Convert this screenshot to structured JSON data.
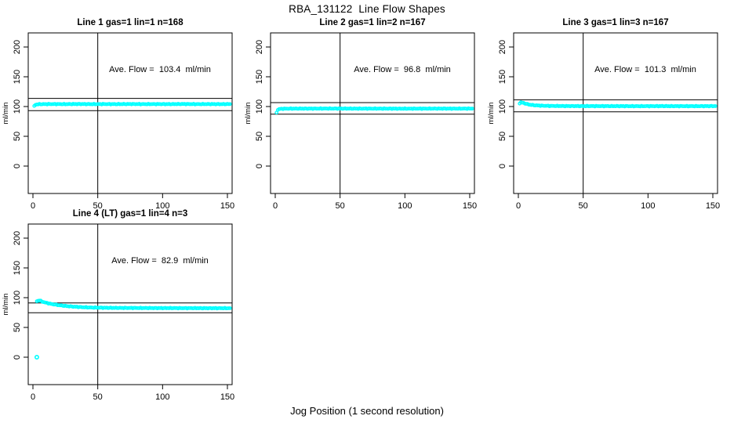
{
  "title": "RBA_131122  Line Flow Shapes",
  "chart_data": {
    "type": "scatter",
    "title": "RBA_131122  Line Flow Shapes",
    "xlabel": "Jog Position (1 second resolution)",
    "ylabel": "ml/min",
    "x_ticks": [
      0,
      50,
      100,
      150
    ],
    "y_ticks": [
      0,
      50,
      100,
      150,
      200
    ],
    "xlim": [
      -4,
      154
    ],
    "ylim": [
      -46,
      224
    ],
    "grid": false,
    "legend": false,
    "marker": "open-circle",
    "point_color": "#00FFFF",
    "axis_color": "#000000",
    "background": "#FFFFFF",
    "vline_x": 50,
    "layout": "2 rows x 3 cols, panels 1-3 on top row, panel 4 bottom-left",
    "subplots": [
      {
        "title": "Line 1 gas=1 lin=1 n=168",
        "n": 168,
        "ave_flow": 103.4,
        "annotation": "Ave. Flow =  103.4  ml/min",
        "ref_lines": [
          113.7,
          93.1
        ],
        "keypoints": [
          [
            1,
            100.5
          ],
          [
            2,
            103.2
          ],
          [
            4,
            103.8
          ],
          [
            8,
            104.0
          ],
          [
            15,
            104.1
          ],
          [
            25,
            104.0
          ],
          [
            35,
            104.2
          ],
          [
            45,
            104.0
          ],
          [
            55,
            104.1
          ],
          [
            65,
            104.0
          ],
          [
            75,
            104.2
          ],
          [
            85,
            104.0
          ],
          [
            95,
            104.1
          ],
          [
            105,
            104.0
          ],
          [
            115,
            104.2
          ],
          [
            125,
            104.0
          ],
          [
            135,
            104.1
          ],
          [
            145,
            104.0
          ],
          [
            152,
            104.1
          ]
        ],
        "outliers": []
      },
      {
        "title": "Line 2 gas=1 lin=2 n=167",
        "n": 167,
        "ave_flow": 96.8,
        "annotation": "Ave. Flow =  96.8  ml/min",
        "ref_lines": [
          106.5,
          87.1
        ],
        "keypoints": [
          [
            1,
            90.0
          ],
          [
            2,
            94.5
          ],
          [
            3,
            95.8
          ],
          [
            6,
            96.3
          ],
          [
            12,
            96.5
          ],
          [
            25,
            96.5
          ],
          [
            40,
            96.6
          ],
          [
            60,
            96.5
          ],
          [
            80,
            96.5
          ],
          [
            100,
            96.4
          ],
          [
            120,
            96.5
          ],
          [
            140,
            96.5
          ],
          [
            152,
            96.5
          ]
        ],
        "outliers": []
      },
      {
        "title": "Line 3 gas=1 lin=3 n=167",
        "n": 167,
        "ave_flow": 101.3,
        "annotation": "Ave. Flow =  101.3  ml/min",
        "ref_lines": [
          111.4,
          91.2
        ],
        "keypoints": [
          [
            1,
            105.5
          ],
          [
            2,
            107.0
          ],
          [
            4,
            106.0
          ],
          [
            6,
            104.5
          ],
          [
            9,
            103.0
          ],
          [
            13,
            102.0
          ],
          [
            18,
            101.4
          ],
          [
            25,
            101.0
          ],
          [
            35,
            100.8
          ],
          [
            50,
            100.7
          ],
          [
            70,
            100.7
          ],
          [
            90,
            100.6
          ],
          [
            110,
            100.7
          ],
          [
            130,
            100.6
          ],
          [
            152,
            100.7
          ]
        ],
        "outliers": []
      },
      {
        "title": "Line 4 (LT) gas=1 lin=4 n=3",
        "n": 3,
        "ave_flow": 82.9,
        "annotation": "Ave. Flow =  82.9  ml/min",
        "ref_lines": [
          91.2,
          74.6
        ],
        "keypoints": [
          [
            3,
            94.0
          ],
          [
            5,
            95.5
          ],
          [
            7,
            93.5
          ],
          [
            10,
            91.5
          ],
          [
            14,
            89.5
          ],
          [
            18,
            88.0
          ],
          [
            22,
            86.8
          ],
          [
            27,
            85.6
          ],
          [
            32,
            84.8
          ],
          [
            38,
            84.0
          ],
          [
            45,
            83.4
          ],
          [
            55,
            83.0
          ],
          [
            65,
            82.8
          ],
          [
            75,
            82.7
          ],
          [
            85,
            82.6
          ],
          [
            95,
            82.5
          ],
          [
            105,
            82.5
          ],
          [
            115,
            82.4
          ],
          [
            125,
            82.4
          ],
          [
            135,
            82.3
          ],
          [
            145,
            82.3
          ],
          [
            152,
            82.3
          ]
        ],
        "outliers": [
          [
            3,
            0
          ]
        ]
      }
    ]
  }
}
